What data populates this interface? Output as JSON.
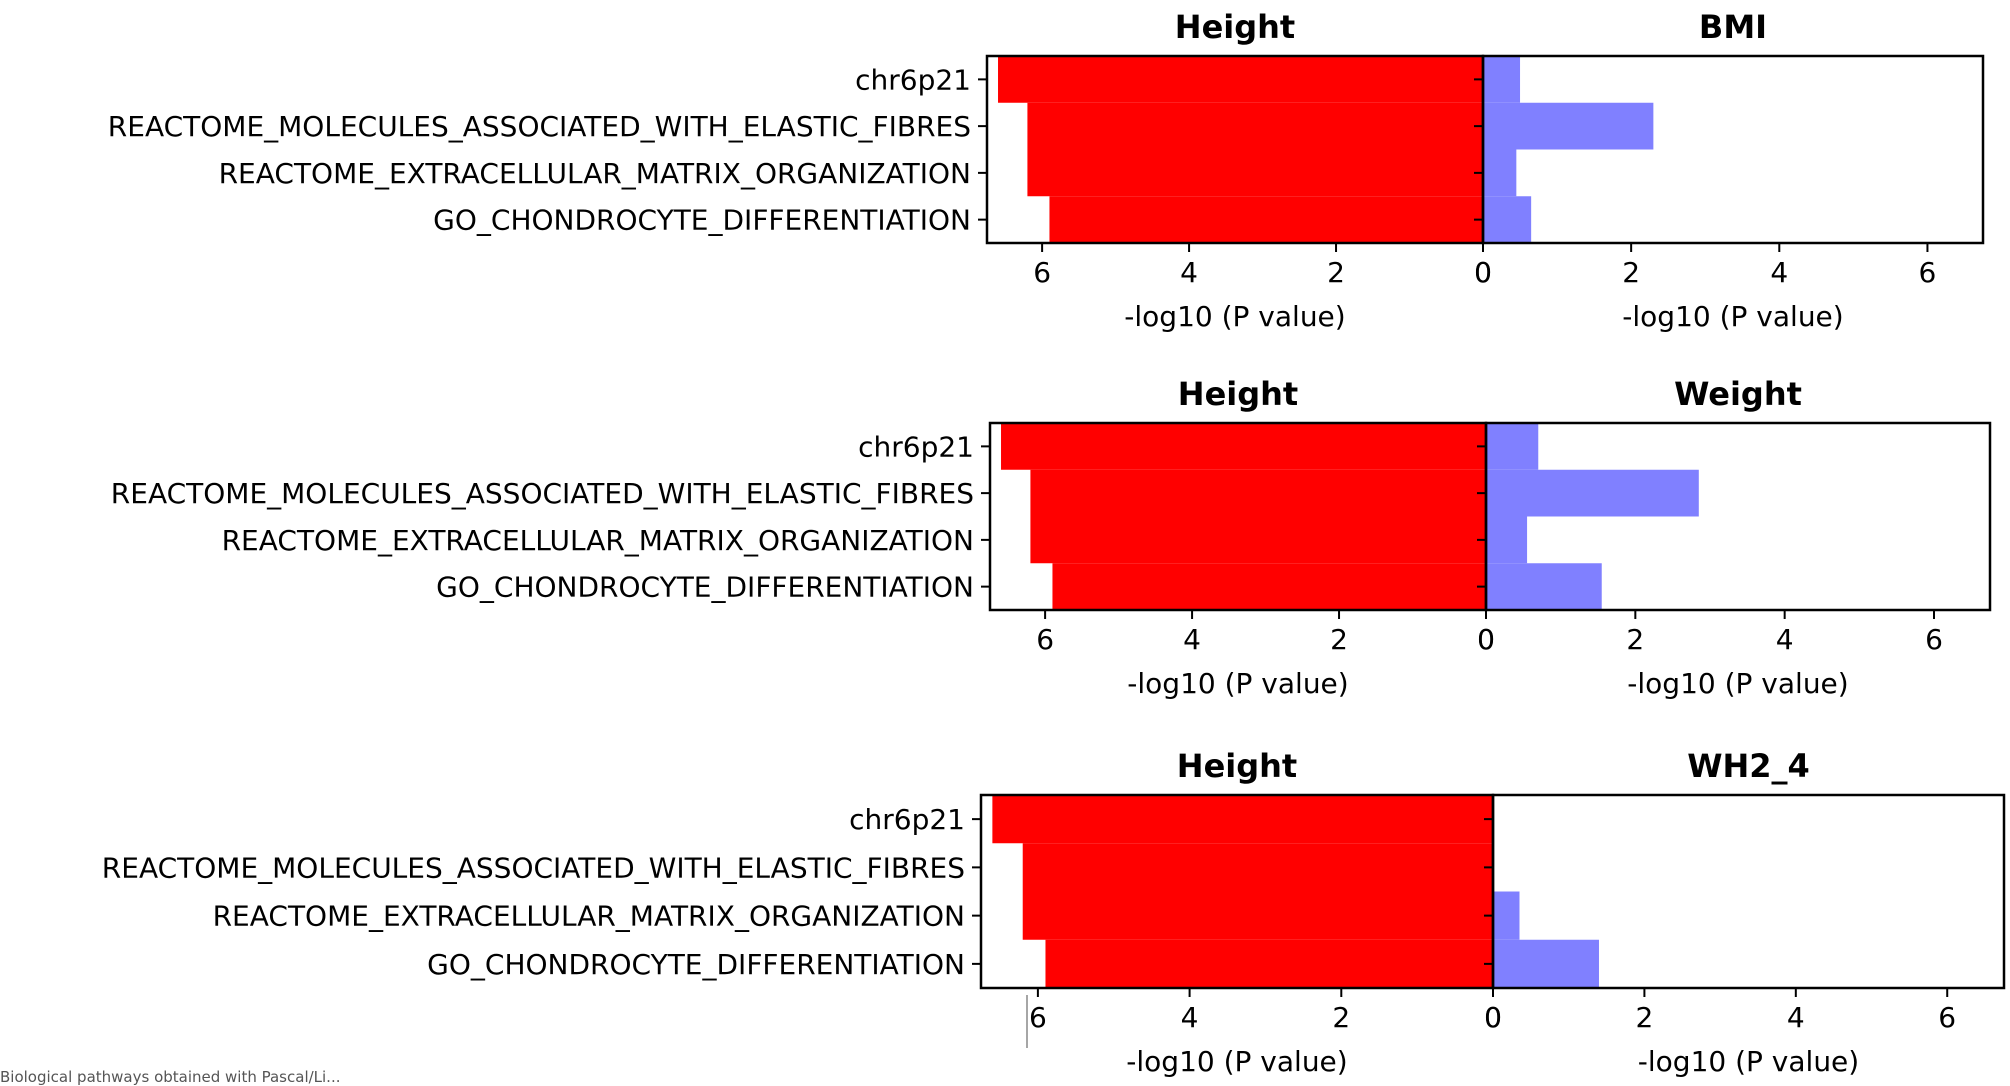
{
  "chart_data": [
    {
      "type": "bar",
      "orientation": "horizontal",
      "categories": [
        "chr6p21",
        "REACTOME_MOLECULES_ASSOCIATED_WITH_ELASTIC_FIBRES",
        "REACTOME_EXTRACELLULAR_MATRIX_ORGANIZATION",
        "GO_CHONDROCYTE_DIFFERENTIATION"
      ],
      "left": {
        "title": "Height",
        "xlabel": "-log10 (P value)",
        "values": [
          6.6,
          6.2,
          6.2,
          5.9
        ],
        "color": "#ff0000",
        "xlim": [
          6.75,
          0
        ],
        "ticks": [
          6,
          4,
          2,
          0
        ]
      },
      "right": {
        "title": "BMI",
        "xlabel": "-log10 (P value)",
        "values": [
          0.5,
          2.3,
          0.45,
          0.65
        ],
        "color": "#8080ff",
        "xlim": [
          0,
          6.75
        ],
        "ticks": [
          0,
          2,
          4,
          6
        ]
      }
    },
    {
      "type": "bar",
      "orientation": "horizontal",
      "categories": [
        "chr6p21",
        "REACTOME_MOLECULES_ASSOCIATED_WITH_ELASTIC_FIBRES",
        "REACTOME_EXTRACELLULAR_MATRIX_ORGANIZATION",
        "GO_CHONDROCYTE_DIFFERENTIATION"
      ],
      "left": {
        "title": "Height",
        "xlabel": "-log10 (P value)",
        "values": [
          6.6,
          6.2,
          6.2,
          5.9
        ],
        "color": "#ff0000",
        "xlim": [
          6.75,
          0
        ],
        "ticks": [
          6,
          4,
          2,
          0
        ]
      },
      "right": {
        "title": "Weight",
        "xlabel": "-log10 (P value)",
        "values": [
          0.7,
          2.85,
          0.55,
          1.55
        ],
        "color": "#8080ff",
        "xlim": [
          0,
          6.75
        ],
        "ticks": [
          0,
          2,
          4,
          6
        ]
      }
    },
    {
      "type": "bar",
      "orientation": "horizontal",
      "categories": [
        "chr6p21",
        "REACTOME_MOLECULES_ASSOCIATED_WITH_ELASTIC_FIBRES",
        "REACTOME_EXTRACELLULAR_MATRIX_ORGANIZATION",
        "GO_CHONDROCYTE_DIFFERENTIATION"
      ],
      "left": {
        "title": "Height",
        "xlabel": "-log10 (P value)",
        "values": [
          6.6,
          6.2,
          6.2,
          5.9
        ],
        "color": "#ff0000",
        "xlim": [
          6.75,
          0
        ],
        "ticks": [
          6,
          4,
          2,
          0
        ]
      },
      "right": {
        "title": "WH2_4",
        "xlabel": "-log10 (P value)",
        "values": [
          0,
          0,
          0.35,
          1.4
        ],
        "color": "#8080ff",
        "xlim": [
          0,
          6.75
        ],
        "ticks": [
          0,
          2,
          4,
          6
        ]
      }
    }
  ],
  "caption": "Biological pathways obtained with Pascal/Li..."
}
